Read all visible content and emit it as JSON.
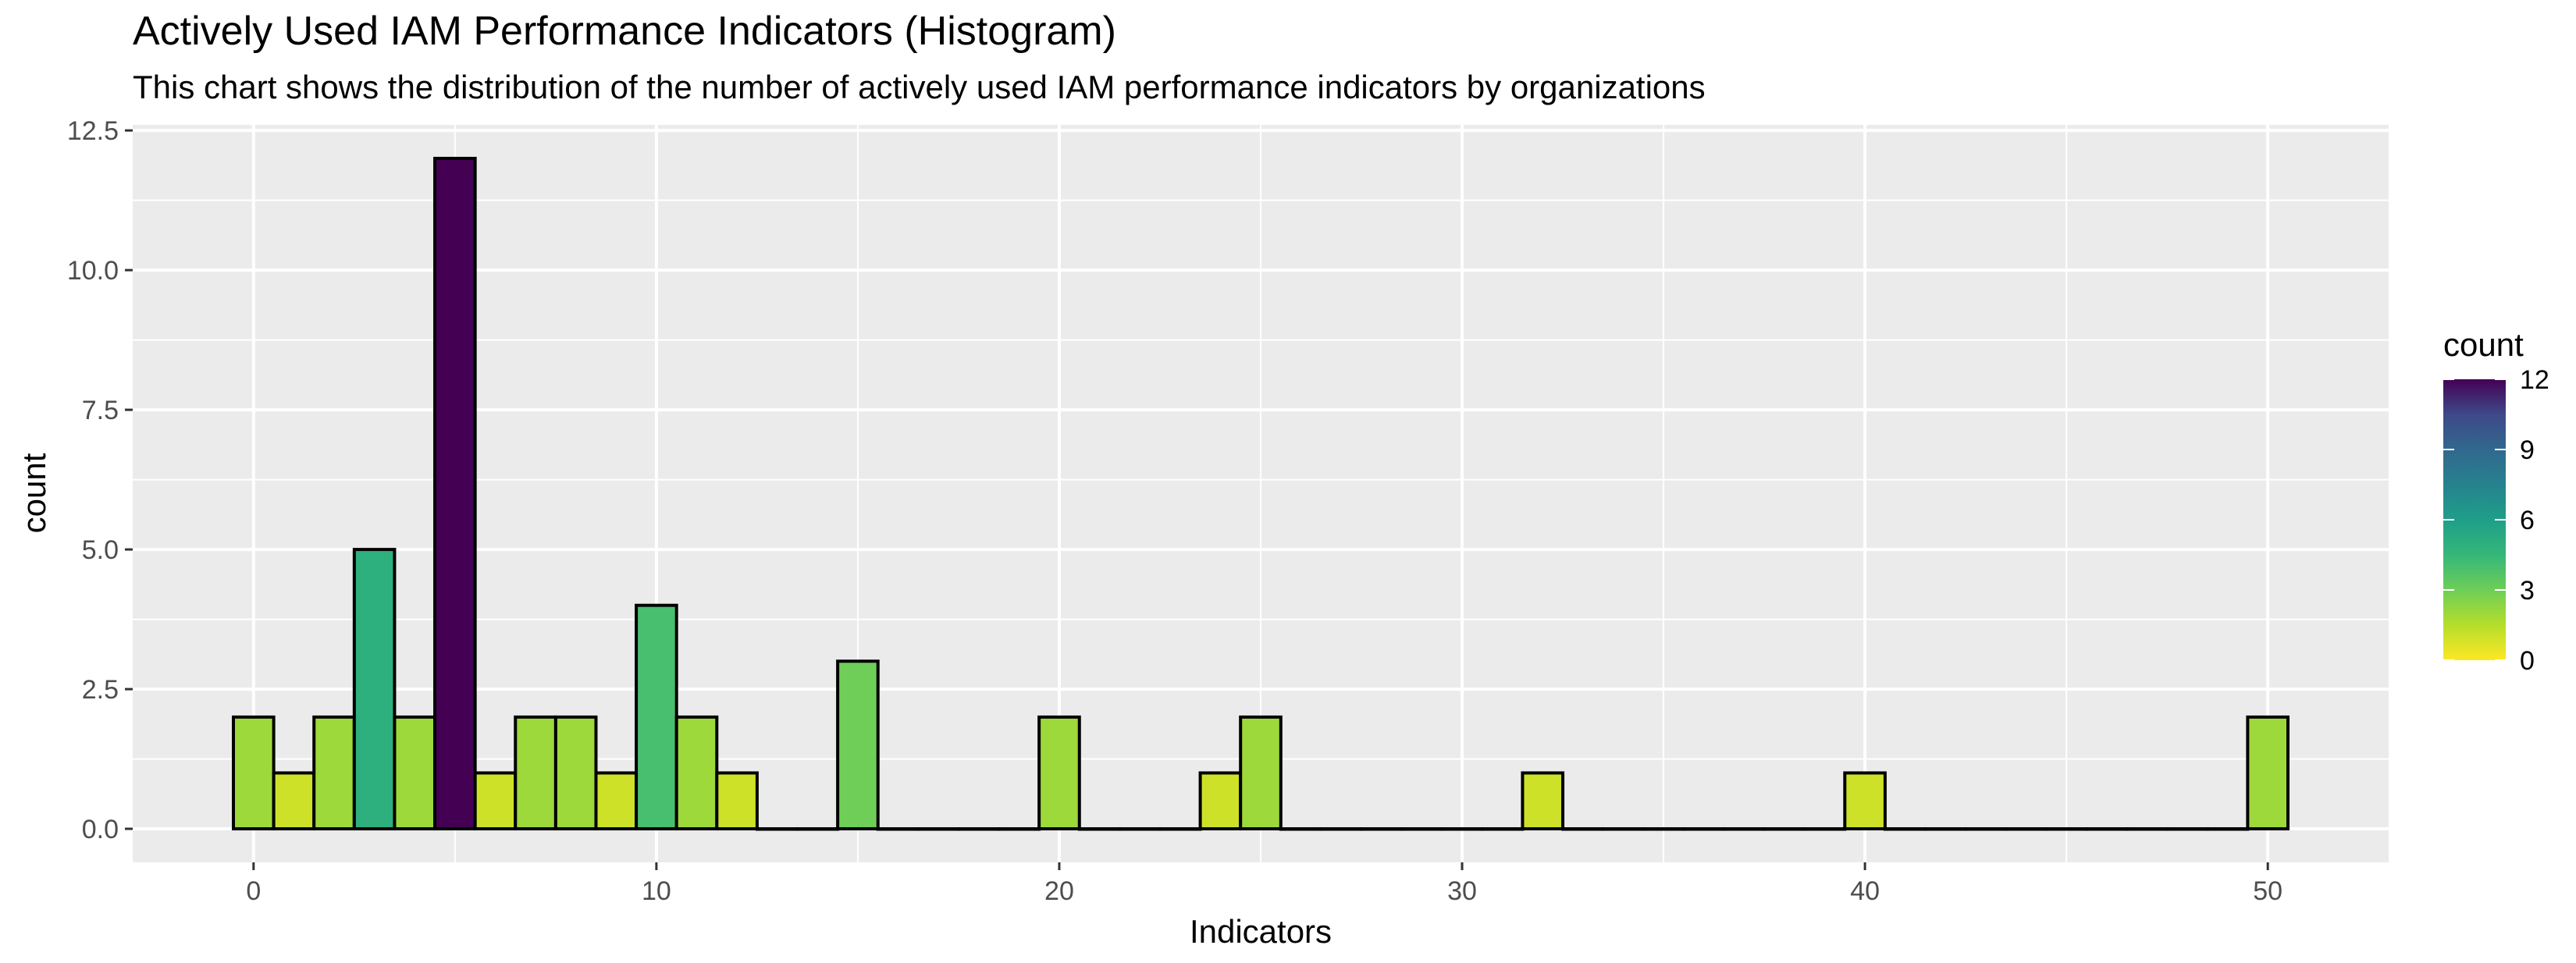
{
  "chart_data": {
    "type": "bar",
    "title": "Actively Used IAM Performance Indicators (Histogram)",
    "subtitle": "This chart shows the distribution of the number of actively used IAM performance indicators by organizations",
    "xlabel": "Indicators",
    "ylabel": "count",
    "xlim": [
      -3,
      53
    ],
    "ylim": [
      -0.6,
      12.6
    ],
    "x_ticks": [
      0,
      10,
      20,
      30,
      40,
      50
    ],
    "y_ticks": [
      0.0,
      2.5,
      5.0,
      7.5,
      10.0,
      12.5
    ],
    "y_tick_labels": [
      "0.0",
      "2.5",
      "5.0",
      "7.5",
      "10.0",
      "12.5"
    ],
    "bin_width": 1,
    "bins": [
      {
        "x": 0,
        "count": 2
      },
      {
        "x": 1,
        "count": 1
      },
      {
        "x": 2,
        "count": 2
      },
      {
        "x": 3,
        "count": 5
      },
      {
        "x": 4,
        "count": 2
      },
      {
        "x": 5,
        "count": 12
      },
      {
        "x": 6,
        "count": 1
      },
      {
        "x": 7,
        "count": 2
      },
      {
        "x": 8,
        "count": 2
      },
      {
        "x": 9,
        "count": 1
      },
      {
        "x": 10,
        "count": 4
      },
      {
        "x": 11,
        "count": 2
      },
      {
        "x": 12,
        "count": 1
      },
      {
        "x": 13,
        "count": 0
      },
      {
        "x": 14,
        "count": 0
      },
      {
        "x": 15,
        "count": 3
      },
      {
        "x": 16,
        "count": 0
      },
      {
        "x": 17,
        "count": 0
      },
      {
        "x": 18,
        "count": 0
      },
      {
        "x": 19,
        "count": 0
      },
      {
        "x": 20,
        "count": 2
      },
      {
        "x": 21,
        "count": 0
      },
      {
        "x": 22,
        "count": 0
      },
      {
        "x": 23,
        "count": 0
      },
      {
        "x": 24,
        "count": 1
      },
      {
        "x": 25,
        "count": 2
      },
      {
        "x": 26,
        "count": 0
      },
      {
        "x": 27,
        "count": 0
      },
      {
        "x": 28,
        "count": 0
      },
      {
        "x": 29,
        "count": 0
      },
      {
        "x": 30,
        "count": 0
      },
      {
        "x": 31,
        "count": 0
      },
      {
        "x": 32,
        "count": 1
      },
      {
        "x": 33,
        "count": 0
      },
      {
        "x": 34,
        "count": 0
      },
      {
        "x": 35,
        "count": 0
      },
      {
        "x": 36,
        "count": 0
      },
      {
        "x": 37,
        "count": 0
      },
      {
        "x": 38,
        "count": 0
      },
      {
        "x": 39,
        "count": 0
      },
      {
        "x": 40,
        "count": 1
      },
      {
        "x": 41,
        "count": 0
      },
      {
        "x": 42,
        "count": 0
      },
      {
        "x": 43,
        "count": 0
      },
      {
        "x": 44,
        "count": 0
      },
      {
        "x": 45,
        "count": 0
      },
      {
        "x": 46,
        "count": 0
      },
      {
        "x": 47,
        "count": 0
      },
      {
        "x": 48,
        "count": 0
      },
      {
        "x": 49,
        "count": 0
      },
      {
        "x": 50,
        "count": 2
      }
    ],
    "fill_scale": "viridis (reversed): 0 = yellow, 12 = dark purple",
    "legend": {
      "title": "count",
      "position": "right",
      "ticks": [
        0,
        3,
        6,
        9,
        12
      ],
      "tick_labels": [
        "0",
        "3",
        "6",
        "9",
        "12"
      ],
      "range": [
        0,
        12
      ]
    },
    "grid": true,
    "panel_background": "#ebebeb",
    "bar_outline": "#000000"
  }
}
